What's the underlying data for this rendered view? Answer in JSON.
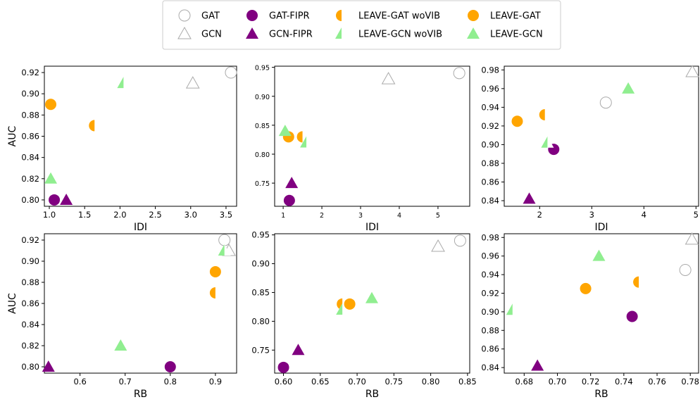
{
  "legend": {
    "entries": [
      {
        "key": "GAT",
        "label": "GAT"
      },
      {
        "key": "GCN",
        "label": "GCN"
      },
      {
        "key": "GAT-FIPR",
        "label": "GAT-FIPR"
      },
      {
        "key": "GCN-FIPR",
        "label": "GCN-FIPR"
      },
      {
        "key": "LEAVE-GAT woVIB",
        "label": "LEAVE-GAT woVIB"
      },
      {
        "key": "LEAVE-GCN woVIB",
        "label": "LEAVE-GCN woVIB"
      },
      {
        "key": "LEAVE-GAT",
        "label": "LEAVE-GAT"
      },
      {
        "key": "LEAVE-GCN",
        "label": "LEAVE-GCN"
      }
    ],
    "placement": "top-center"
  },
  "styles": {
    "GAT": {
      "marker": "circle",
      "fill": "none",
      "color": "#aaaaaa"
    },
    "GCN": {
      "marker": "triangle",
      "fill": "none",
      "color": "#aaaaaa"
    },
    "GAT-FIPR": {
      "marker": "circle",
      "fill": "full",
      "color": "#800080"
    },
    "GCN-FIPR": {
      "marker": "triangle",
      "fill": "full",
      "color": "#800080"
    },
    "LEAVE-GAT woVIB": {
      "marker": "circle",
      "fill": "half",
      "color": "#ffa500"
    },
    "LEAVE-GCN woVIB": {
      "marker": "triangle",
      "fill": "half",
      "color": "#90ee90"
    },
    "LEAVE-GAT": {
      "marker": "circle",
      "fill": "full",
      "color": "#ffa500"
    },
    "LEAVE-GCN": {
      "marker": "triangle",
      "fill": "full",
      "color": "#90ee90"
    }
  },
  "chart_data": [
    {
      "type": "scatter",
      "xlabel": "IDI",
      "ylabel": "AUC",
      "xlim": [
        0.93,
        3.65
      ],
      "ylim": [
        0.794,
        0.926
      ],
      "xticks": [
        "1.0",
        "1.5",
        "2.0",
        "2.5",
        "3.0",
        "3.5"
      ],
      "yticks": [
        "0.80",
        "0.82",
        "0.84",
        "0.86",
        "0.88",
        "0.90",
        "0.92"
      ],
      "small_ticks": false,
      "points": [
        {
          "series": "GAT",
          "x": 3.57,
          "y": 0.92
        },
        {
          "series": "GCN",
          "x": 3.03,
          "y": 0.91
        },
        {
          "series": "GAT-FIPR",
          "x": 1.07,
          "y": 0.8
        },
        {
          "series": "GCN-FIPR",
          "x": 1.24,
          "y": 0.8
        },
        {
          "series": "LEAVE-GAT woVIB",
          "x": 1.64,
          "y": 0.87
        },
        {
          "series": "LEAVE-GCN woVIB",
          "x": 2.05,
          "y": 0.91
        },
        {
          "series": "LEAVE-GAT",
          "x": 1.02,
          "y": 0.89
        },
        {
          "series": "LEAVE-GCN",
          "x": 1.02,
          "y": 0.82
        }
      ]
    },
    {
      "type": "scatter",
      "xlabel": "IDI",
      "ylabel": "",
      "xlim": [
        0.78,
        5.82
      ],
      "ylim": [
        0.71,
        0.952
      ],
      "xticks": [
        "1",
        "2",
        "3",
        "4",
        "5"
      ],
      "yticks": [
        "0.75",
        "0.80",
        "0.85",
        "0.90",
        "0.95"
      ],
      "small_ticks": true,
      "points": [
        {
          "series": "GAT",
          "x": 5.55,
          "y": 0.94
        },
        {
          "series": "GCN",
          "x": 3.72,
          "y": 0.93
        },
        {
          "series": "GAT-FIPR",
          "x": 1.16,
          "y": 0.72
        },
        {
          "series": "GCN-FIPR",
          "x": 1.22,
          "y": 0.75
        },
        {
          "series": "LEAVE-GAT woVIB",
          "x": 1.5,
          "y": 0.83
        },
        {
          "series": "LEAVE-GCN woVIB",
          "x": 1.6,
          "y": 0.82
        },
        {
          "series": "LEAVE-GAT",
          "x": 1.14,
          "y": 0.83
        },
        {
          "series": "LEAVE-GCN",
          "x": 1.05,
          "y": 0.84
        }
      ]
    },
    {
      "type": "scatter",
      "xlabel": "IDI",
      "ylabel": "",
      "xlim": [
        1.32,
        5.05
      ],
      "ylim": [
        0.834,
        0.984
      ],
      "xticks": [
        "2",
        "3",
        "4",
        "5"
      ],
      "yticks": [
        "0.84",
        "0.86",
        "0.88",
        "0.90",
        "0.92",
        "0.94",
        "0.96",
        "0.98"
      ],
      "small_ticks": false,
      "points": [
        {
          "series": "GAT",
          "x": 3.27,
          "y": 0.945
        },
        {
          "series": "GCN",
          "x": 4.93,
          "y": 0.978
        },
        {
          "series": "GAT-FIPR",
          "x": 2.27,
          "y": 0.895
        },
        {
          "series": "GCN-FIPR",
          "x": 1.8,
          "y": 0.842
        },
        {
          "series": "LEAVE-GAT woVIB",
          "x": 2.1,
          "y": 0.932
        },
        {
          "series": "LEAVE-GCN woVIB",
          "x": 2.15,
          "y": 0.902
        },
        {
          "series": "LEAVE-GAT",
          "x": 1.57,
          "y": 0.925
        },
        {
          "series": "LEAVE-GCN",
          "x": 3.7,
          "y": 0.96
        }
      ]
    },
    {
      "type": "scatter",
      "xlabel": "RB",
      "ylabel": "AUC",
      "xlim": [
        0.521,
        0.947
      ],
      "ylim": [
        0.794,
        0.926
      ],
      "xticks": [
        "0.6",
        "0.7",
        "0.8",
        "0.9"
      ],
      "yticks": [
        "0.80",
        "0.82",
        "0.84",
        "0.86",
        "0.88",
        "0.90",
        "0.92"
      ],
      "small_ticks": false,
      "points": [
        {
          "series": "GAT",
          "x": 0.92,
          "y": 0.92
        },
        {
          "series": "GCN",
          "x": 0.93,
          "y": 0.91
        },
        {
          "series": "GAT-FIPR",
          "x": 0.8,
          "y": 0.8
        },
        {
          "series": "GCN-FIPR",
          "x": 0.53,
          "y": 0.8
        },
        {
          "series": "LEAVE-GAT woVIB",
          "x": 0.9,
          "y": 0.87
        },
        {
          "series": "LEAVE-GCN woVIB",
          "x": 0.92,
          "y": 0.91
        },
        {
          "series": "LEAVE-GAT",
          "x": 0.9,
          "y": 0.89
        },
        {
          "series": "LEAVE-GCN",
          "x": 0.69,
          "y": 0.82
        }
      ]
    },
    {
      "type": "scatter",
      "xlabel": "RB",
      "ylabel": "",
      "xlim": [
        0.588,
        0.853
      ],
      "ylim": [
        0.71,
        0.952
      ],
      "xticks": [
        "0.60",
        "0.65",
        "0.70",
        "0.75",
        "0.80",
        "0.85"
      ],
      "yticks": [
        "0.75",
        "0.80",
        "0.85",
        "0.90",
        "0.95"
      ],
      "small_ticks": false,
      "points": [
        {
          "series": "GAT",
          "x": 0.84,
          "y": 0.94
        },
        {
          "series": "GCN",
          "x": 0.81,
          "y": 0.93
        },
        {
          "series": "GAT-FIPR",
          "x": 0.6,
          "y": 0.72
        },
        {
          "series": "GCN-FIPR",
          "x": 0.62,
          "y": 0.75
        },
        {
          "series": "LEAVE-GAT woVIB",
          "x": 0.68,
          "y": 0.83
        },
        {
          "series": "LEAVE-GCN woVIB",
          "x": 0.68,
          "y": 0.82
        },
        {
          "series": "LEAVE-GAT",
          "x": 0.69,
          "y": 0.83
        },
        {
          "series": "LEAVE-GCN",
          "x": 0.72,
          "y": 0.84
        }
      ]
    },
    {
      "type": "scatter",
      "xlabel": "RB",
      "ylabel": "",
      "xlim": [
        0.668,
        0.785
      ],
      "ylim": [
        0.834,
        0.984
      ],
      "xticks": [
        "0.68",
        "0.70",
        "0.72",
        "0.74",
        "0.76",
        "0.78"
      ],
      "yticks": [
        "0.84",
        "0.86",
        "0.88",
        "0.90",
        "0.92",
        "0.94",
        "0.96",
        "0.98"
      ],
      "small_ticks": false,
      "points": [
        {
          "series": "GAT",
          "x": 0.777,
          "y": 0.945
        },
        {
          "series": "GCN",
          "x": 0.781,
          "y": 0.978
        },
        {
          "series": "GAT-FIPR",
          "x": 0.745,
          "y": 0.895
        },
        {
          "series": "GCN-FIPR",
          "x": 0.688,
          "y": 0.842
        },
        {
          "series": "LEAVE-GAT woVIB",
          "x": 0.749,
          "y": 0.932
        },
        {
          "series": "LEAVE-GCN woVIB",
          "x": 0.673,
          "y": 0.902
        },
        {
          "series": "LEAVE-GAT",
          "x": 0.717,
          "y": 0.925
        },
        {
          "series": "LEAVE-GCN",
          "x": 0.725,
          "y": 0.96
        }
      ]
    }
  ]
}
